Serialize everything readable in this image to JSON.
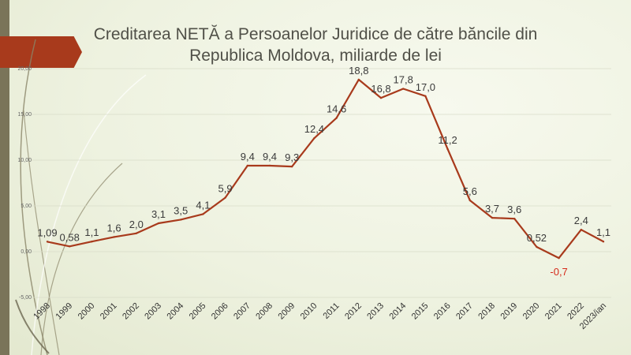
{
  "chart_data": {
    "type": "line",
    "title": "Creditarea NETĂ a Persoanelor Juridice de către băncile din Republica Moldova, miliarde de lei",
    "xlabel": "",
    "ylabel": "",
    "ylim": [
      -5,
      20
    ],
    "y_ticks": [
      "-5,00",
      "0,00",
      "5,00",
      "10,00",
      "15,00",
      "20,00"
    ],
    "grid": true,
    "legend": "none",
    "line_color": "#a83a1c",
    "negative_label_color": "#d52a1a",
    "categories": [
      "1998",
      "1999",
      "2000",
      "2001",
      "2002",
      "2003",
      "2004",
      "2005",
      "2006",
      "2007",
      "2008",
      "2009",
      "2010",
      "2011",
      "2012",
      "2013",
      "2014",
      "2015",
      "2016",
      "2017",
      "2018",
      "2019",
      "2020",
      "2021",
      "2022",
      "2023/ian"
    ],
    "values": [
      1.09,
      0.58,
      1.1,
      1.6,
      2.0,
      3.1,
      3.5,
      4.1,
      5.9,
      9.4,
      9.4,
      9.3,
      12.4,
      14.6,
      18.8,
      16.8,
      17.8,
      17.0,
      11.2,
      5.6,
      3.7,
      3.6,
      0.52,
      -0.7,
      2.4,
      1.1
    ],
    "data_labels": [
      "1,09",
      "0,58",
      "1,1",
      "1,6",
      "2,0",
      "3,1",
      "3,5",
      "4,1",
      "5,9",
      "9,4",
      "9,4",
      "9,3",
      "12,4",
      "14,6",
      "18,8",
      "16,8",
      "17,8",
      "17,0",
      "11,2",
      "5,6",
      "3,7",
      "3,6",
      "0,52",
      "-0,7",
      "2,4",
      "1,1"
    ]
  }
}
